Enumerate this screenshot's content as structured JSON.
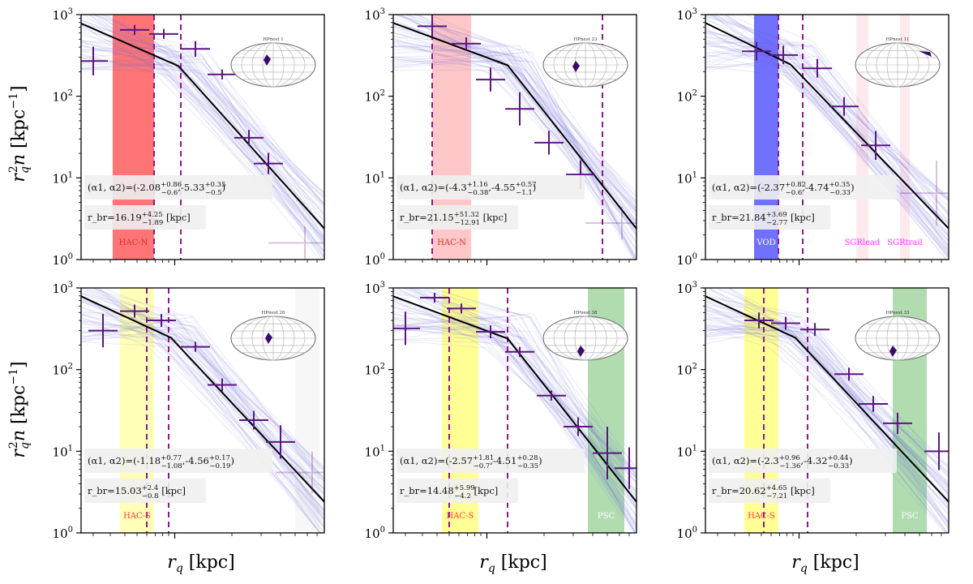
{
  "figure": {
    "ylabel": "r_q^2 n [kpc^-1]",
    "xlabel": "r_q [kpc]"
  },
  "chart_data": [
    {
      "type": "scatter",
      "panel": "HPnest 1",
      "inset_label": "HPnest 1",
      "yscale": "log",
      "ylim": [
        1,
        1000
      ],
      "yticks": [
        "10^0",
        "10^1",
        "10^2",
        "10^3"
      ],
      "x": [
        0.05,
        0.22,
        0.34,
        0.47,
        0.58,
        0.69,
        0.77,
        0.92
      ],
      "y": [
        270,
        650,
        580,
        380,
        185,
        31,
        15,
        1.6
      ],
      "yerr_factor": [
        1.5,
        1.15,
        1.15,
        1.25,
        1.15,
        1.25,
        1.35,
        1.6
      ],
      "faint_from_index": 7,
      "broken_power_law": [
        [
          0.0,
          780
        ],
        [
          0.4,
          235
        ],
        [
          1.0,
          2.4
        ]
      ],
      "region_bands": [
        {
          "label": "HAC-N",
          "x0": 0.13,
          "x1": 0.3,
          "color": "#ff3b3b",
          "alpha": 0.7,
          "label_color": "#d63030"
        }
      ],
      "dashed_lines": [
        0.3,
        0.41
      ],
      "annotation_alpha": "(α1, α2)=(-2.08+0.86−0.6,-5.33+0.35−0.5)",
      "annotation_rbr": "r_br=16.19+4.25−1.89 [kpc]"
    },
    {
      "type": "scatter",
      "panel": "HPnest 23",
      "inset_label": "HPnest 23",
      "yscale": "log",
      "ylim": [
        1,
        1000
      ],
      "yticks": [
        "10^0",
        "10^1",
        "10^2",
        "10^3"
      ],
      "x": [
        0.16,
        0.3,
        0.4,
        0.52,
        0.64,
        0.77,
        0.94
      ],
      "y": [
        720,
        440,
        160,
        70,
        27,
        11,
        2.8
      ],
      "yerr_factor": [
        1.3,
        1.2,
        1.4,
        1.6,
        1.4,
        1.5,
        1.6
      ],
      "faint_from_index": 6,
      "broken_power_law": [
        [
          0.0,
          790
        ],
        [
          0.47,
          240
        ],
        [
          1.0,
          2.4
        ]
      ],
      "region_bands": [
        {
          "label": "HAC-N",
          "x0": 0.16,
          "x1": 0.32,
          "color": "#ff8f8f",
          "alpha": 0.5,
          "label_color": "#d63030"
        }
      ],
      "dashed_lines": [
        0.16,
        0.86
      ],
      "annotation_alpha": "(α1, α2)=(-4.3+1.16−0.38,-4.55+0.57−1.1)",
      "annotation_rbr": "r_br=21.15+51.32−12.91 [kpc]"
    },
    {
      "type": "scatter",
      "panel": "HPnest 11",
      "inset_label": "HPnest 11",
      "yscale": "log",
      "ylim": [
        1,
        1000
      ],
      "yticks": [
        "10^0",
        "10^1",
        "10^2",
        "10^3"
      ],
      "x": [
        0.21,
        0.32,
        0.46,
        0.57,
        0.7,
        0.95
      ],
      "y": [
        355,
        320,
        220,
        75,
        25,
        6.5
      ],
      "yerr_factor": [
        1.3,
        1.3,
        1.3,
        1.3,
        1.5,
        2.5
      ],
      "faint_from_index": 5,
      "broken_power_law": [
        [
          0.0,
          790
        ],
        [
          0.35,
          245
        ],
        [
          1.0,
          2.4
        ]
      ],
      "region_bands": [
        {
          "label": "VOD",
          "x0": 0.2,
          "x1": 0.3,
          "color": "#3535ff",
          "alpha": 0.7,
          "label_color": "#ffffff"
        },
        {
          "label": "SGRlead",
          "x0": 0.62,
          "x1": 0.67,
          "color": "#ffc0cb",
          "alpha": 0.35,
          "label_color": "#ff33ff"
        },
        {
          "label": "SGRtrail",
          "x0": 0.8,
          "x1": 0.84,
          "color": "#ffc0cb",
          "alpha": 0.35,
          "label_color": "#ff33ff"
        }
      ],
      "dashed_lines": [
        0.3,
        0.4
      ],
      "annotation_alpha": "(α1, α2)=(-2.37+0.82−0.6,-4.74+0.35−0.33)",
      "annotation_rbr": "r_br=21.84+3.69−2.77 [kpc]"
    },
    {
      "type": "scatter",
      "panel": "HPnest 20",
      "inset_label": "HPnest 20",
      "yscale": "log",
      "ylim": [
        1,
        1000
      ],
      "yticks": [
        "10^0",
        "10^1",
        "10^2",
        "10^3"
      ],
      "x": [
        0.09,
        0.22,
        0.33,
        0.47,
        0.58,
        0.71,
        0.82,
        0.95
      ],
      "y": [
        300,
        520,
        400,
        190,
        65,
        24,
        13,
        5.5
      ],
      "yerr_factor": [
        1.6,
        1.2,
        1.2,
        1.15,
        1.2,
        1.3,
        1.6,
        1.8
      ],
      "faint_from_index": 7,
      "broken_power_law": [
        [
          0.0,
          790
        ],
        [
          0.37,
          245
        ],
        [
          1.0,
          2.4
        ]
      ],
      "region_bands": [
        {
          "label": "HAC-S",
          "x0": 0.16,
          "x1": 0.3,
          "color": "#ffff70",
          "alpha": 0.5,
          "label_color": "#ff3b3b"
        },
        {
          "label": "",
          "x0": 0.88,
          "x1": 0.98,
          "color": "#f2f2f2",
          "alpha": 0.6,
          "label_color": "#ff3b3b"
        }
      ],
      "dashed_lines": [
        0.27,
        0.36
      ],
      "annotation_alpha": "(α1, α2)=(-1.18+0.77−1.08,-4.56+0.17−0.19)",
      "annotation_rbr": "r_br=15.03+2.4−0.8 [kpc]"
    },
    {
      "type": "scatter",
      "panel": "HPnest 38",
      "inset_label": "HPnest 38",
      "yscale": "log",
      "ylim": [
        1,
        1000
      ],
      "yticks": [
        "10^0",
        "10^1",
        "10^2",
        "10^3"
      ],
      "x": [
        0.05,
        0.17,
        0.28,
        0.4,
        0.52,
        0.65,
        0.76,
        0.88,
        0.97
      ],
      "y": [
        320,
        760,
        560,
        290,
        165,
        48,
        20,
        9.5,
        6.2
      ],
      "yerr_factor": [
        1.6,
        1.15,
        1.15,
        1.2,
        1.15,
        1.15,
        1.3,
        2.1,
        1.8
      ],
      "faint_from_index": 9,
      "broken_power_law": [
        [
          0.0,
          790
        ],
        [
          0.47,
          240
        ],
        [
          1.0,
          2.4
        ]
      ],
      "region_bands": [
        {
          "label": "HAC-S",
          "x0": 0.2,
          "x1": 0.35,
          "color": "#ffff50",
          "alpha": 0.6,
          "label_color": "#ff3b3b"
        },
        {
          "label": "PSC",
          "x0": 0.8,
          "x1": 0.95,
          "color": "#6fbf6f",
          "alpha": 0.55,
          "label_color": "#ffffff"
        }
      ],
      "dashed_lines": [
        0.23,
        0.47
      ],
      "annotation_alpha": "(α1, α2)=(-2.57+1.81−0.7,-4.51+0.28−0.35)",
      "annotation_rbr": "r_br=14.48+5.99−4.2 [kpc]"
    },
    {
      "type": "scatter",
      "panel": "HPnest 33",
      "inset_label": "HPnest 33",
      "yscale": "log",
      "ylim": [
        1,
        1000
      ],
      "yticks": [
        "10^0",
        "10^1",
        "10^2",
        "10^3"
      ],
      "x": [
        0.22,
        0.33,
        0.45,
        0.59,
        0.69,
        0.79,
        0.96
      ],
      "y": [
        400,
        370,
        310,
        88,
        38,
        22,
        10
      ],
      "yerr_factor": [
        1.25,
        1.2,
        1.2,
        1.2,
        1.25,
        1.35,
        1.7
      ],
      "faint_from_index": 7,
      "broken_power_law": [
        [
          0.0,
          790
        ],
        [
          0.37,
          245
        ],
        [
          1.0,
          2.4
        ]
      ],
      "region_bands": [
        {
          "label": "HAC-S",
          "x0": 0.16,
          "x1": 0.3,
          "color": "#ffff50",
          "alpha": 0.6,
          "label_color": "#ff3b3b"
        },
        {
          "label": "PSC",
          "x0": 0.77,
          "x1": 0.91,
          "color": "#6fbf6f",
          "alpha": 0.55,
          "label_color": "#ffffff"
        }
      ],
      "dashed_lines": [
        0.24,
        0.42
      ],
      "annotation_alpha": "(α1, α2)=(-2.3+0.96−1.36,-4.32+0.44−0.33)",
      "annotation_rbr": "r_br=20.62+4.65−7.21 [kpc]"
    }
  ]
}
